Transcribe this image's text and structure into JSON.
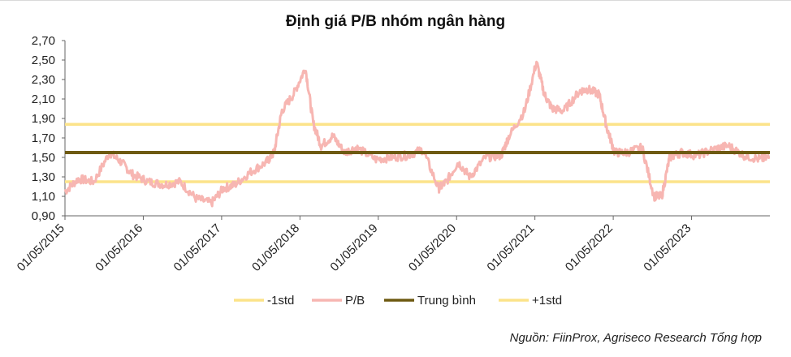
{
  "chart_data": {
    "type": "line",
    "title": "Định giá P/B nhóm ngân hàng",
    "ylim": [
      0.9,
      2.7
    ],
    "yticks": [
      "0,90",
      "1,10",
      "1,30",
      "1,50",
      "1,70",
      "1,90",
      "2,10",
      "2,30",
      "2,50",
      "2,70"
    ],
    "x_tick_labels": [
      "01/05/2015",
      "01/05/2016",
      "01/05/2017",
      "01/05/2018",
      "01/05/2019",
      "01/05/2020",
      "01/05/2021",
      "01/05/2022",
      "01/05/2023"
    ],
    "x_range": [
      2015.33,
      2024.33
    ],
    "legend_position": "bottom",
    "grid": false,
    "series": [
      {
        "name": "-1std",
        "color": "#fce38a",
        "value": 1.25
      },
      {
        "name": "P/B",
        "color": "#f7b6b2",
        "x": [
          2015.33,
          2015.5,
          2015.7,
          2015.9,
          2016.05,
          2016.2,
          2016.4,
          2016.6,
          2016.8,
          2017.0,
          2017.2,
          2017.35,
          2017.5,
          2017.7,
          2017.9,
          2018.0,
          2018.1,
          2018.25,
          2018.4,
          2018.5,
          2018.6,
          2018.75,
          2018.9,
          2019.05,
          2019.3,
          2019.5,
          2019.7,
          2019.9,
          2020.1,
          2020.2,
          2020.35,
          2020.5,
          2020.7,
          2020.9,
          2021.0,
          2021.2,
          2021.35,
          2021.45,
          2021.55,
          2021.7,
          2021.9,
          2022.0,
          2022.15,
          2022.25,
          2022.35,
          2022.5,
          2022.7,
          2022.85,
          2022.95,
          2023.05,
          2023.2,
          2023.4,
          2023.6,
          2023.8,
          2024.0,
          2024.2,
          2024.33
        ],
        "values": [
          1.15,
          1.28,
          1.25,
          1.55,
          1.45,
          1.32,
          1.25,
          1.22,
          1.25,
          1.08,
          1.03,
          1.18,
          1.22,
          1.35,
          1.45,
          1.55,
          1.98,
          2.15,
          2.42,
          1.85,
          1.62,
          1.72,
          1.55,
          1.6,
          1.48,
          1.5,
          1.52,
          1.58,
          1.18,
          1.25,
          1.45,
          1.3,
          1.5,
          1.52,
          1.72,
          1.98,
          2.48,
          2.15,
          2.0,
          1.98,
          2.18,
          2.2,
          2.15,
          1.8,
          1.55,
          1.55,
          1.6,
          1.1,
          1.1,
          1.5,
          1.55,
          1.52,
          1.58,
          1.62,
          1.52,
          1.48,
          1.5
        ]
      },
      {
        "name": "Trung bình",
        "color": "#6e5a12",
        "value": 1.55
      },
      {
        "name": "+1std",
        "color": "#fce38a",
        "value": 1.84
      }
    ]
  },
  "source": "Nguồn: FiinProx, Agriseco Research Tổng hợp"
}
